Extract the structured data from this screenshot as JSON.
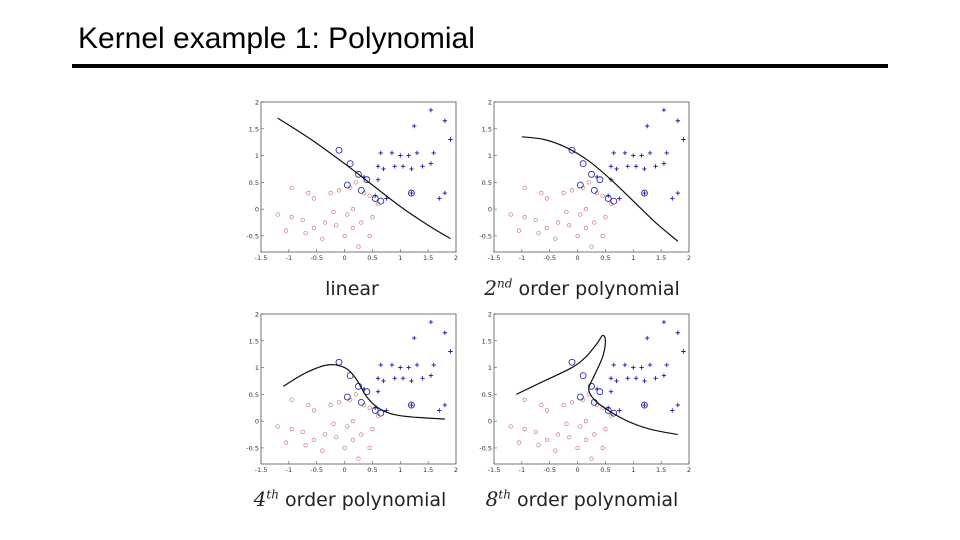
{
  "slide": {
    "title": "Kernel example 1: Polynomial"
  },
  "captions": [
    {
      "prefix": "",
      "sup": "",
      "text": "linear"
    },
    {
      "prefix": "2",
      "sup": "nd",
      "text": "order polynomial"
    },
    {
      "prefix": "4",
      "sup": "th",
      "text": "order polynomial"
    },
    {
      "prefix": "8",
      "sup": "th",
      "text": "order polynomial"
    }
  ],
  "colors": {
    "positive": "#1a1aa8",
    "negative": "#d07a7a",
    "boundary": "#111111",
    "axis": "#000000"
  },
  "chart_data": [
    {
      "type": "scatter",
      "title": "",
      "xlabel": "",
      "ylabel": "",
      "xlim": [
        -1.5,
        2
      ],
      "ylim": [
        -0.8,
        2
      ],
      "xticks": [
        "-1.5",
        "-1",
        "-0.5",
        "0",
        "0.5",
        "1",
        "1.5",
        "2"
      ],
      "yticks": [
        "-0.5",
        "0",
        "0.5",
        "1",
        "1.5",
        "2"
      ],
      "grid": false,
      "positive": [
        [
          1.55,
          1.85
        ],
        [
          1.8,
          1.65
        ],
        [
          1.25,
          1.55
        ],
        [
          1.9,
          1.3
        ],
        [
          0.65,
          1.05
        ],
        [
          0.85,
          1.05
        ],
        [
          1.0,
          1.0
        ],
        [
          1.15,
          1.0
        ],
        [
          1.3,
          1.05
        ],
        [
          1.6,
          1.05
        ],
        [
          0.6,
          0.8
        ],
        [
          0.7,
          0.75
        ],
        [
          0.9,
          0.8
        ],
        [
          1.05,
          0.8
        ],
        [
          1.2,
          0.75
        ],
        [
          1.4,
          0.8
        ],
        [
          1.55,
          0.85
        ],
        [
          0.35,
          0.6
        ],
        [
          0.6,
          0.55
        ],
        [
          1.2,
          0.3
        ],
        [
          1.7,
          0.2
        ],
        [
          1.8,
          0.3
        ],
        [
          0.55,
          0.25
        ],
        [
          0.75,
          0.2
        ]
      ],
      "negative": [
        [
          -0.95,
          0.4
        ],
        [
          -0.65,
          0.3
        ],
        [
          -0.55,
          0.2
        ],
        [
          -0.25,
          0.3
        ],
        [
          -0.1,
          0.35
        ],
        [
          0.1,
          0.4
        ],
        [
          0.2,
          0.5
        ],
        [
          0.35,
          0.3
        ],
        [
          0.45,
          0.25
        ],
        [
          0.6,
          0.1
        ],
        [
          -1.2,
          -0.1
        ],
        [
          -0.95,
          -0.15
        ],
        [
          -0.75,
          -0.2
        ],
        [
          -0.55,
          -0.35
        ],
        [
          -0.35,
          -0.25
        ],
        [
          -0.15,
          -0.3
        ],
        [
          0.0,
          -0.5
        ],
        [
          0.15,
          -0.35
        ],
        [
          0.3,
          -0.25
        ],
        [
          0.45,
          -0.5
        ],
        [
          -1.05,
          -0.4
        ],
        [
          -0.7,
          -0.45
        ],
        [
          -0.4,
          -0.55
        ],
        [
          0.25,
          -0.7
        ],
        [
          0.05,
          -0.1
        ],
        [
          -0.2,
          -0.05
        ],
        [
          0.15,
          0.0
        ],
        [
          0.5,
          -0.15
        ]
      ],
      "support_vectors": [
        [
          -0.1,
          1.1
        ],
        [
          0.1,
          0.85
        ],
        [
          0.25,
          0.65
        ],
        [
          0.4,
          0.55
        ],
        [
          0.05,
          0.45
        ],
        [
          0.3,
          0.35
        ],
        [
          0.55,
          0.2
        ],
        [
          1.2,
          0.3
        ],
        [
          0.65,
          0.15
        ]
      ],
      "boundary": [
        [
          -1.2,
          1.7
        ],
        [
          -0.6,
          1.3
        ],
        [
          0.0,
          0.85
        ],
        [
          0.5,
          0.45
        ],
        [
          1.0,
          0.05
        ],
        [
          1.5,
          -0.3
        ],
        [
          1.9,
          -0.55
        ]
      ]
    },
    {
      "type": "scatter",
      "title": "",
      "xlabel": "",
      "ylabel": "",
      "xlim": [
        -1.5,
        2
      ],
      "ylim": [
        -0.8,
        2
      ],
      "xticks": [
        "-1.5",
        "-1",
        "-0.5",
        "0",
        "0.5",
        "1",
        "1.5",
        "2"
      ],
      "yticks": [
        "-0.5",
        "0",
        "0.5",
        "1",
        "1.5",
        "2"
      ],
      "grid": false,
      "positive": [
        [
          1.55,
          1.85
        ],
        [
          1.8,
          1.65
        ],
        [
          1.25,
          1.55
        ],
        [
          1.9,
          1.3
        ],
        [
          0.65,
          1.05
        ],
        [
          0.85,
          1.05
        ],
        [
          1.0,
          1.0
        ],
        [
          1.15,
          1.0
        ],
        [
          1.3,
          1.05
        ],
        [
          1.6,
          1.05
        ],
        [
          0.6,
          0.8
        ],
        [
          0.7,
          0.75
        ],
        [
          0.9,
          0.8
        ],
        [
          1.05,
          0.8
        ],
        [
          1.2,
          0.75
        ],
        [
          1.4,
          0.8
        ],
        [
          1.55,
          0.85
        ],
        [
          0.35,
          0.6
        ],
        [
          0.6,
          0.55
        ],
        [
          1.2,
          0.3
        ],
        [
          1.7,
          0.2
        ],
        [
          1.8,
          0.3
        ],
        [
          0.55,
          0.25
        ],
        [
          0.75,
          0.2
        ]
      ],
      "negative": [
        [
          -0.95,
          0.4
        ],
        [
          -0.65,
          0.3
        ],
        [
          -0.55,
          0.2
        ],
        [
          -0.25,
          0.3
        ],
        [
          -0.1,
          0.35
        ],
        [
          0.1,
          0.4
        ],
        [
          0.2,
          0.5
        ],
        [
          0.35,
          0.3
        ],
        [
          0.45,
          0.25
        ],
        [
          0.6,
          0.1
        ],
        [
          -1.2,
          -0.1
        ],
        [
          -0.95,
          -0.15
        ],
        [
          -0.75,
          -0.2
        ],
        [
          -0.55,
          -0.35
        ],
        [
          -0.35,
          -0.25
        ],
        [
          -0.15,
          -0.3
        ],
        [
          0.0,
          -0.5
        ],
        [
          0.15,
          -0.35
        ],
        [
          0.3,
          -0.25
        ],
        [
          0.45,
          -0.5
        ],
        [
          -1.05,
          -0.4
        ],
        [
          -0.7,
          -0.45
        ],
        [
          -0.4,
          -0.55
        ],
        [
          0.25,
          -0.7
        ],
        [
          0.05,
          -0.1
        ],
        [
          -0.2,
          -0.05
        ],
        [
          0.15,
          0.0
        ],
        [
          0.5,
          -0.15
        ]
      ],
      "support_vectors": [
        [
          -0.1,
          1.1
        ],
        [
          0.1,
          0.85
        ],
        [
          0.25,
          0.65
        ],
        [
          0.4,
          0.55
        ],
        [
          0.05,
          0.45
        ],
        [
          0.3,
          0.35
        ],
        [
          0.55,
          0.2
        ],
        [
          1.2,
          0.3
        ],
        [
          0.65,
          0.15
        ]
      ],
      "boundary": [
        [
          -1.0,
          1.35
        ],
        [
          -0.6,
          1.3
        ],
        [
          -0.2,
          1.15
        ],
        [
          0.2,
          0.9
        ],
        [
          0.6,
          0.55
        ],
        [
          1.0,
          0.15
        ],
        [
          1.4,
          -0.25
        ],
        [
          1.8,
          -0.6
        ]
      ]
    },
    {
      "type": "scatter",
      "title": "",
      "xlabel": "",
      "ylabel": "",
      "xlim": [
        -1.5,
        2
      ],
      "ylim": [
        -0.8,
        2
      ],
      "xticks": [
        "-1.5",
        "-1",
        "-0.5",
        "0",
        "0.5",
        "1",
        "1.5",
        "2"
      ],
      "yticks": [
        "-0.5",
        "0",
        "0.5",
        "1",
        "1.5",
        "2"
      ],
      "grid": false,
      "positive": [
        [
          1.55,
          1.85
        ],
        [
          1.8,
          1.65
        ],
        [
          1.25,
          1.55
        ],
        [
          1.9,
          1.3
        ],
        [
          0.65,
          1.05
        ],
        [
          0.85,
          1.05
        ],
        [
          1.0,
          1.0
        ],
        [
          1.15,
          1.0
        ],
        [
          1.3,
          1.05
        ],
        [
          1.6,
          1.05
        ],
        [
          0.6,
          0.8
        ],
        [
          0.7,
          0.75
        ],
        [
          0.9,
          0.8
        ],
        [
          1.05,
          0.8
        ],
        [
          1.2,
          0.75
        ],
        [
          1.4,
          0.8
        ],
        [
          1.55,
          0.85
        ],
        [
          0.35,
          0.6
        ],
        [
          0.6,
          0.55
        ],
        [
          1.2,
          0.3
        ],
        [
          1.7,
          0.2
        ],
        [
          1.8,
          0.3
        ],
        [
          0.55,
          0.25
        ],
        [
          0.75,
          0.2
        ]
      ],
      "negative": [
        [
          -0.95,
          0.4
        ],
        [
          -0.65,
          0.3
        ],
        [
          -0.55,
          0.2
        ],
        [
          -0.25,
          0.3
        ],
        [
          -0.1,
          0.35
        ],
        [
          0.1,
          0.4
        ],
        [
          0.2,
          0.5
        ],
        [
          0.35,
          0.3
        ],
        [
          0.45,
          0.25
        ],
        [
          0.6,
          0.1
        ],
        [
          -1.2,
          -0.1
        ],
        [
          -0.95,
          -0.15
        ],
        [
          -0.75,
          -0.2
        ],
        [
          -0.55,
          -0.35
        ],
        [
          -0.35,
          -0.25
        ],
        [
          -0.15,
          -0.3
        ],
        [
          0.0,
          -0.5
        ],
        [
          0.15,
          -0.35
        ],
        [
          0.3,
          -0.25
        ],
        [
          0.45,
          -0.5
        ],
        [
          -1.05,
          -0.4
        ],
        [
          -0.7,
          -0.45
        ],
        [
          -0.4,
          -0.55
        ],
        [
          0.25,
          -0.7
        ],
        [
          0.05,
          -0.1
        ],
        [
          -0.2,
          -0.05
        ],
        [
          0.15,
          0.0
        ],
        [
          0.5,
          -0.15
        ]
      ],
      "support_vectors": [
        [
          -0.1,
          1.1
        ],
        [
          0.1,
          0.85
        ],
        [
          0.25,
          0.65
        ],
        [
          0.4,
          0.55
        ],
        [
          0.05,
          0.45
        ],
        [
          0.3,
          0.35
        ],
        [
          0.55,
          0.2
        ],
        [
          1.2,
          0.3
        ],
        [
          0.65,
          0.15
        ]
      ],
      "boundary": [
        [
          -1.1,
          0.65
        ],
        [
          -0.7,
          0.9
        ],
        [
          -0.3,
          1.05
        ],
        [
          0.0,
          1.0
        ],
        [
          0.2,
          0.8
        ],
        [
          0.4,
          0.45
        ],
        [
          0.6,
          0.25
        ],
        [
          0.9,
          0.12
        ],
        [
          1.3,
          0.07
        ],
        [
          1.8,
          0.04
        ]
      ]
    },
    {
      "type": "scatter",
      "title": "",
      "xlabel": "",
      "ylabel": "",
      "xlim": [
        -1.5,
        2
      ],
      "ylim": [
        -0.8,
        2
      ],
      "xticks": [
        "-1.5",
        "-1",
        "-0.5",
        "0",
        "0.5",
        "1",
        "1.5",
        "2"
      ],
      "yticks": [
        "-0.5",
        "0",
        "0.5",
        "1",
        "1.5",
        "2"
      ],
      "grid": false,
      "positive": [
        [
          1.55,
          1.85
        ],
        [
          1.8,
          1.65
        ],
        [
          1.25,
          1.55
        ],
        [
          1.9,
          1.3
        ],
        [
          0.65,
          1.05
        ],
        [
          0.85,
          1.05
        ],
        [
          1.0,
          1.0
        ],
        [
          1.15,
          1.0
        ],
        [
          1.3,
          1.05
        ],
        [
          1.6,
          1.05
        ],
        [
          0.6,
          0.8
        ],
        [
          0.7,
          0.75
        ],
        [
          0.9,
          0.8
        ],
        [
          1.05,
          0.8
        ],
        [
          1.2,
          0.75
        ],
        [
          1.4,
          0.8
        ],
        [
          1.55,
          0.85
        ],
        [
          0.35,
          0.6
        ],
        [
          0.6,
          0.55
        ],
        [
          1.2,
          0.3
        ],
        [
          1.7,
          0.2
        ],
        [
          1.8,
          0.3
        ],
        [
          0.55,
          0.25
        ],
        [
          0.75,
          0.2
        ]
      ],
      "negative": [
        [
          -0.95,
          0.4
        ],
        [
          -0.65,
          0.3
        ],
        [
          -0.55,
          0.2
        ],
        [
          -0.25,
          0.3
        ],
        [
          -0.1,
          0.35
        ],
        [
          0.1,
          0.4
        ],
        [
          0.2,
          0.5
        ],
        [
          0.35,
          0.3
        ],
        [
          0.45,
          0.25
        ],
        [
          0.6,
          0.1
        ],
        [
          -1.2,
          -0.1
        ],
        [
          -0.95,
          -0.15
        ],
        [
          -0.75,
          -0.2
        ],
        [
          -0.55,
          -0.35
        ],
        [
          -0.35,
          -0.25
        ],
        [
          -0.15,
          -0.3
        ],
        [
          0.0,
          -0.5
        ],
        [
          0.15,
          -0.35
        ],
        [
          0.3,
          -0.25
        ],
        [
          0.45,
          -0.5
        ],
        [
          -1.05,
          -0.4
        ],
        [
          -0.7,
          -0.45
        ],
        [
          -0.4,
          -0.55
        ],
        [
          0.25,
          -0.7
        ],
        [
          0.05,
          -0.1
        ],
        [
          -0.2,
          -0.05
        ],
        [
          0.15,
          0.0
        ],
        [
          0.5,
          -0.15
        ]
      ],
      "support_vectors": [
        [
          -0.1,
          1.1
        ],
        [
          0.1,
          0.85
        ],
        [
          0.25,
          0.65
        ],
        [
          0.4,
          0.55
        ],
        [
          0.05,
          0.45
        ],
        [
          0.3,
          0.35
        ],
        [
          0.55,
          0.2
        ],
        [
          1.2,
          0.3
        ],
        [
          0.65,
          0.15
        ]
      ],
      "boundary": [
        [
          -1.1,
          0.5
        ],
        [
          -0.6,
          0.75
        ],
        [
          -0.1,
          1.0
        ],
        [
          0.15,
          1.2
        ],
        [
          0.35,
          1.45
        ],
        [
          0.45,
          1.6
        ],
        [
          0.5,
          1.5
        ],
        [
          0.45,
          1.2
        ],
        [
          0.3,
          0.85
        ],
        [
          0.2,
          0.6
        ],
        [
          0.3,
          0.4
        ],
        [
          0.55,
          0.2
        ],
        [
          0.9,
          0.0
        ],
        [
          1.3,
          -0.15
        ],
        [
          1.8,
          -0.25
        ]
      ]
    }
  ]
}
